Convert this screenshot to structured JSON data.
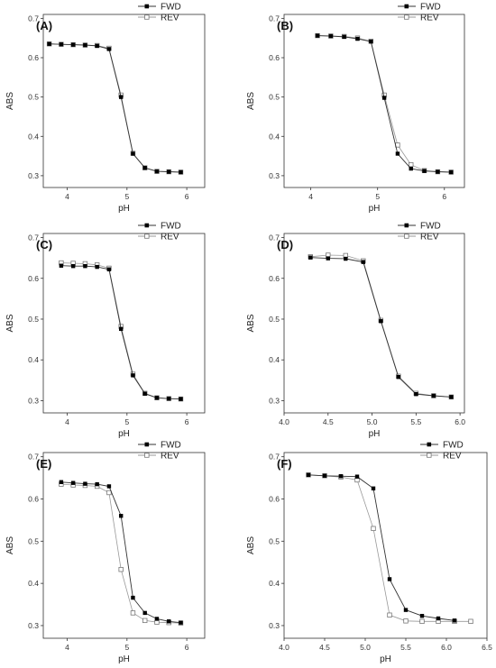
{
  "chart_data": [
    {
      "type": "line",
      "panel_label": "(A)",
      "xlabel": "pH",
      "ylabel": "ABS",
      "xlim": [
        3.6,
        6.3
      ],
      "ylim": [
        0.27,
        0.71
      ],
      "xticks": [
        4,
        5,
        6
      ],
      "yticks": [
        0.3,
        0.4,
        0.5,
        0.6,
        0.7
      ],
      "legend_position": "top-right",
      "series": [
        {
          "name": "FWD",
          "marker": "filled-square",
          "x": [
            3.7,
            3.9,
            4.1,
            4.3,
            4.5,
            4.7,
            4.9,
            5.1,
            5.3,
            5.5,
            5.7,
            5.9
          ],
          "y": [
            0.635,
            0.634,
            0.633,
            0.632,
            0.63,
            0.622,
            0.5,
            0.356,
            0.32,
            0.311,
            0.31,
            0.309
          ]
        },
        {
          "name": "REV",
          "marker": "open-square",
          "x": [
            3.7,
            3.9,
            4.1,
            4.3,
            4.5,
            4.7,
            4.9,
            5.1,
            5.3,
            5.5,
            5.7,
            5.9
          ],
          "y": [
            0.635,
            0.634,
            0.633,
            0.632,
            0.631,
            0.624,
            0.505,
            0.357,
            0.32,
            0.311,
            0.31,
            0.309
          ]
        }
      ]
    },
    {
      "type": "line",
      "panel_label": "(B)",
      "xlabel": "pH",
      "ylabel": "ABS",
      "xlim": [
        3.6,
        6.3
      ],
      "ylim": [
        0.27,
        0.71
      ],
      "xticks": [
        4,
        5,
        6
      ],
      "yticks": [
        0.3,
        0.4,
        0.5,
        0.6,
        0.7
      ],
      "legend_position": "top-right",
      "series": [
        {
          "name": "FWD",
          "marker": "filled-square",
          "x": [
            4.1,
            4.3,
            4.5,
            4.7,
            4.9,
            5.1,
            5.3,
            5.5,
            5.7,
            5.9,
            6.1
          ],
          "y": [
            0.656,
            0.655,
            0.653,
            0.648,
            0.641,
            0.498,
            0.356,
            0.318,
            0.312,
            0.31,
            0.309
          ]
        },
        {
          "name": "REV",
          "marker": "open-square",
          "x": [
            4.1,
            4.3,
            4.5,
            4.7,
            4.9,
            5.1,
            5.3,
            5.5,
            5.7,
            5.9,
            6.1
          ],
          "y": [
            0.656,
            0.655,
            0.654,
            0.65,
            0.642,
            0.505,
            0.378,
            0.328,
            0.313,
            0.31,
            0.309
          ]
        }
      ]
    },
    {
      "type": "line",
      "panel_label": "(C)",
      "xlabel": "pH",
      "ylabel": "ABS",
      "xlim": [
        3.6,
        6.3
      ],
      "ylim": [
        0.27,
        0.71
      ],
      "xticks": [
        4,
        5,
        6
      ],
      "yticks": [
        0.3,
        0.4,
        0.5,
        0.6,
        0.7
      ],
      "legend_position": "top-right",
      "series": [
        {
          "name": "FWD",
          "marker": "filled-square",
          "x": [
            3.9,
            4.1,
            4.3,
            4.5,
            4.7,
            4.9,
            5.1,
            5.3,
            5.5,
            5.7,
            5.9
          ],
          "y": [
            0.631,
            0.63,
            0.63,
            0.628,
            0.622,
            0.476,
            0.362,
            0.317,
            0.307,
            0.305,
            0.304
          ]
        },
        {
          "name": "REV",
          "marker": "open-square",
          "x": [
            3.9,
            4.1,
            4.3,
            4.5,
            4.7,
            4.9,
            5.1,
            5.3,
            5.5,
            5.7,
            5.9
          ],
          "y": [
            0.638,
            0.637,
            0.636,
            0.633,
            0.625,
            0.482,
            0.365,
            0.318,
            0.307,
            0.305,
            0.304
          ]
        }
      ]
    },
    {
      "type": "line",
      "panel_label": "(D)",
      "xlabel": "pH",
      "ylabel": "ABS",
      "xlim": [
        4.0,
        6.05
      ],
      "ylim": [
        0.27,
        0.71
      ],
      "xticks": [
        4.0,
        4.5,
        5.0,
        5.5,
        6.0
      ],
      "xtick_labels": [
        "4.0",
        "4.5",
        "5.0",
        "5.5",
        "6.0"
      ],
      "yticks": [
        0.3,
        0.4,
        0.5,
        0.6,
        0.7
      ],
      "legend_position": "top-right",
      "series": [
        {
          "name": "FWD",
          "marker": "filled-square",
          "x": [
            4.3,
            4.5,
            4.7,
            4.9,
            5.1,
            5.3,
            5.5,
            5.7,
            5.9
          ],
          "y": [
            0.651,
            0.649,
            0.648,
            0.64,
            0.495,
            0.358,
            0.316,
            0.312,
            0.309
          ]
        },
        {
          "name": "REV",
          "marker": "open-square",
          "x": [
            4.3,
            4.5,
            4.7,
            4.9,
            5.1,
            5.3,
            5.5,
            5.7,
            5.9
          ],
          "y": [
            0.653,
            0.657,
            0.656,
            0.643,
            0.497,
            0.36,
            0.318,
            0.312,
            0.309
          ]
        }
      ]
    },
    {
      "type": "line",
      "panel_label": "(E)",
      "xlabel": "pH",
      "ylabel": "ABS",
      "xlim": [
        3.6,
        6.3
      ],
      "ylim": [
        0.27,
        0.71
      ],
      "xticks": [
        4,
        5,
        6
      ],
      "yticks": [
        0.3,
        0.4,
        0.5,
        0.6,
        0.7
      ],
      "legend_position": "top-right",
      "series": [
        {
          "name": "FWD",
          "marker": "filled-square",
          "x": [
            3.9,
            4.1,
            4.3,
            4.5,
            4.7,
            4.9,
            5.1,
            5.3,
            5.5,
            5.7,
            5.9
          ],
          "y": [
            0.64,
            0.638,
            0.636,
            0.635,
            0.63,
            0.56,
            0.366,
            0.33,
            0.316,
            0.31,
            0.307
          ]
        },
        {
          "name": "REV",
          "marker": "open-square",
          "x": [
            3.9,
            4.1,
            4.3,
            4.5,
            4.7,
            4.9,
            5.1,
            5.3,
            5.5,
            5.7,
            5.9
          ],
          "y": [
            0.635,
            0.633,
            0.632,
            0.63,
            0.615,
            0.433,
            0.33,
            0.312,
            0.308,
            0.307,
            0.306
          ]
        }
      ]
    },
    {
      "type": "line",
      "panel_label": "(F)",
      "xlabel": "pH",
      "ylabel": "ABS",
      "xlim": [
        4.0,
        6.5
      ],
      "ylim": [
        0.27,
        0.71
      ],
      "xticks": [
        4.0,
        4.5,
        5.0,
        5.5,
        6.0,
        6.5
      ],
      "xtick_labels": [
        "4.0",
        "4.5",
        "5.0",
        "5.5",
        "6.0",
        "6.5"
      ],
      "yticks": [
        0.3,
        0.4,
        0.5,
        0.6,
        0.7
      ],
      "legend_position": "top-right",
      "series": [
        {
          "name": "FWD",
          "marker": "filled-square",
          "x": [
            4.3,
            4.5,
            4.7,
            4.9,
            5.1,
            5.3,
            5.5,
            5.7,
            5.9,
            6.1
          ],
          "y": [
            0.657,
            0.655,
            0.654,
            0.653,
            0.625,
            0.41,
            0.337,
            0.323,
            0.317,
            0.312
          ]
        },
        {
          "name": "REV",
          "marker": "open-square",
          "x": [
            4.3,
            4.5,
            4.7,
            4.9,
            5.1,
            5.3,
            5.5,
            5.7,
            5.9,
            6.1,
            6.3
          ],
          "y": [
            0.657,
            0.655,
            0.652,
            0.645,
            0.53,
            0.325,
            0.311,
            0.31,
            0.31,
            0.31,
            0.31
          ]
        }
      ]
    }
  ],
  "colors": {
    "axis": "#333333",
    "fwd_line": "#333333",
    "rev_line": "#999999",
    "fwd_marker_fill": "#000000",
    "rev_marker_fill": "#ffffff",
    "rev_marker_stroke": "#777777"
  }
}
